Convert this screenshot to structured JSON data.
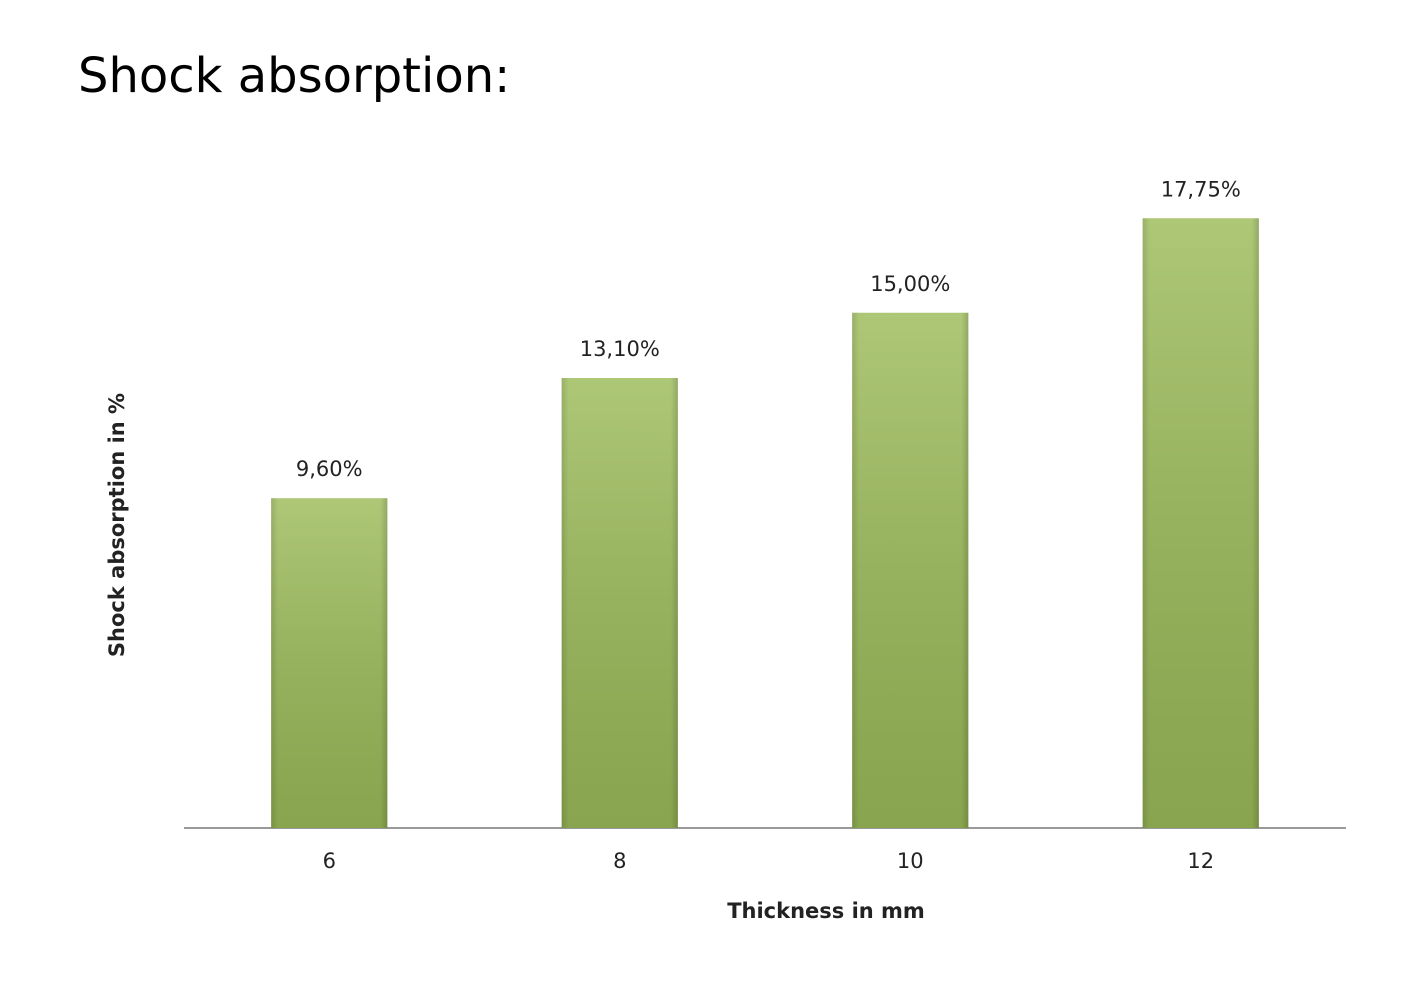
{
  "chart_data": {
    "type": "bar",
    "title": "Shock absorption:",
    "x_label": "Thickness in mm",
    "y_label": "Shock absorption in %",
    "categories": [
      "6",
      "8",
      "10",
      "12"
    ],
    "values": [
      9.6,
      13.1,
      15.0,
      17.75
    ],
    "value_labels": [
      "9,60%",
      "13,10%",
      "15,00%",
      "17,75%"
    ],
    "color": "#9bbb59",
    "ylim": [
      0,
      20
    ]
  }
}
